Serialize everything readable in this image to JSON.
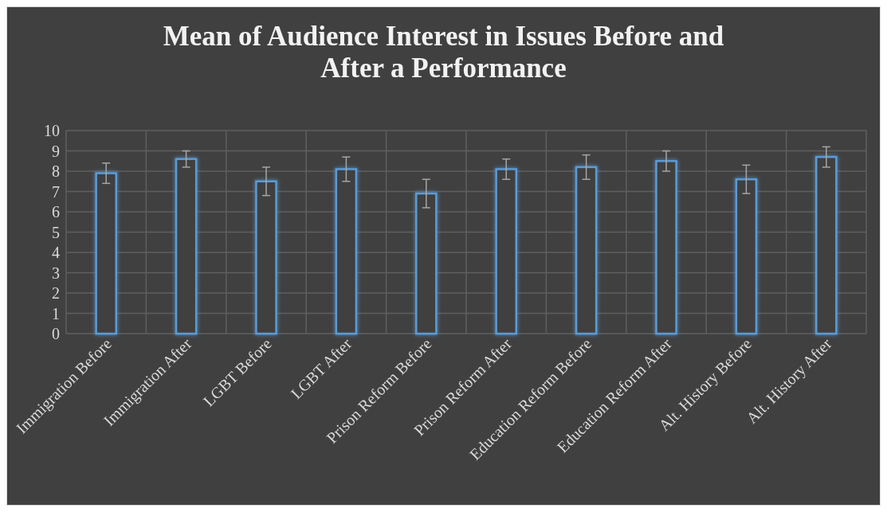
{
  "chart_data": {
    "type": "bar",
    "title": "Mean of Audience Interest in Issues Before and After a Performance",
    "categories": [
      "Immigration Before",
      "Immigration After",
      "LGBT Before",
      "LGBT After",
      "Prison Reform Before",
      "Prison Reform After",
      "Education Reform Before",
      "Education Reform After",
      "Alt. History Before",
      "Alt. History After"
    ],
    "values": [
      7.9,
      8.6,
      7.5,
      8.1,
      6.9,
      8.1,
      8.2,
      8.5,
      7.6,
      8.7
    ],
    "errors": [
      0.5,
      0.4,
      0.7,
      0.6,
      0.7,
      0.5,
      0.6,
      0.5,
      0.7,
      0.5
    ],
    "color": "#5b9bd5",
    "ylim": [
      0,
      10
    ],
    "yticks": [
      0,
      1,
      2,
      3,
      4,
      5,
      6,
      7,
      8,
      9,
      10
    ],
    "grid": true
  }
}
